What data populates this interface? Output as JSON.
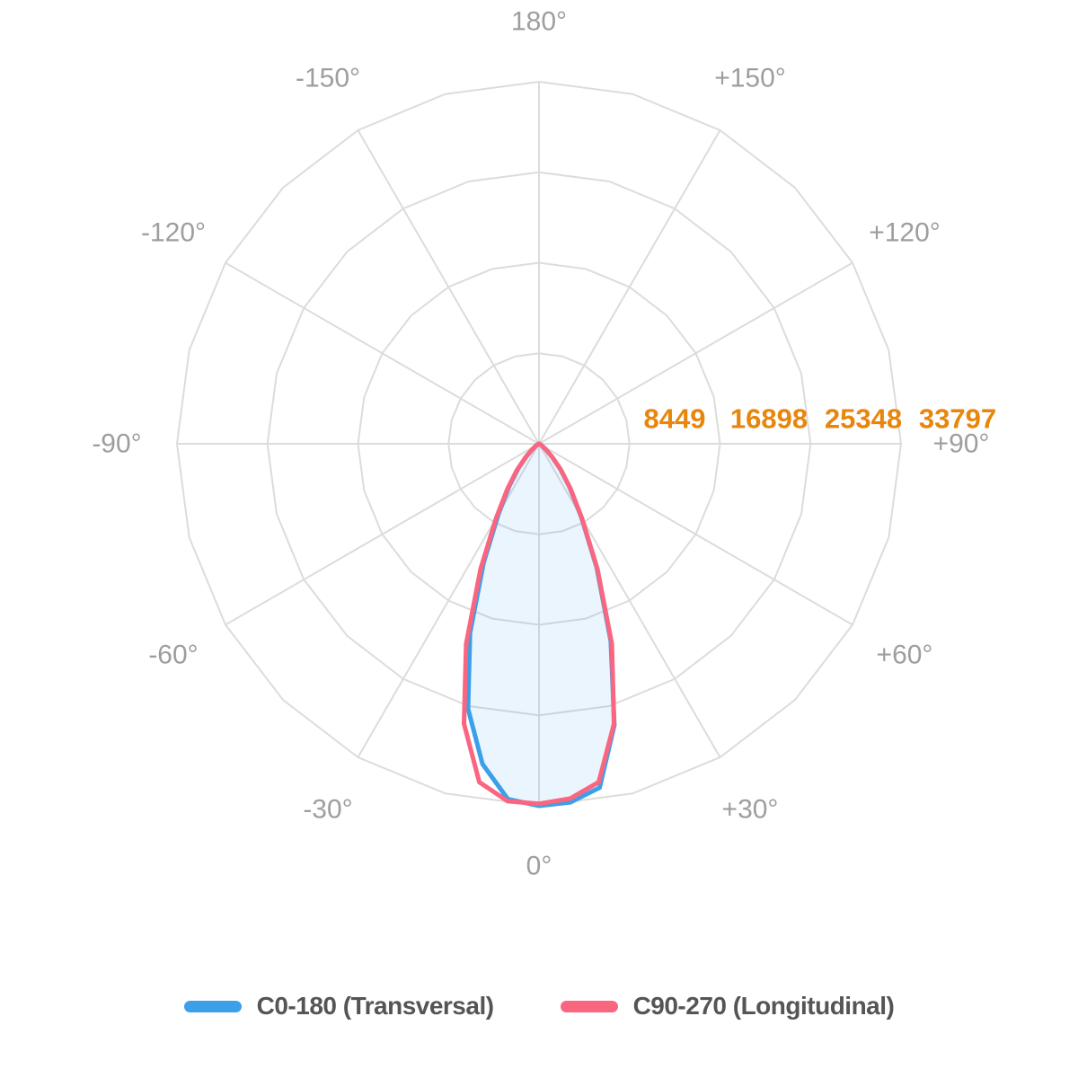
{
  "page": {
    "background": "#ffffff"
  },
  "chart_data": {
    "type": "line",
    "polar": true,
    "title": "",
    "description": "Photometric polar luminous intensity distribution diagram, 0 degrees at bottom",
    "grid": {
      "color": "#dcdcdc",
      "ring_count": 4,
      "spoke_step_deg": 30,
      "ring_vertex_step_deg": 15,
      "grid_on": true
    },
    "angle_axis": {
      "tick_step_deg": 30,
      "label_color": "#9e9e9e",
      "labels": [
        {
          "deg": 0,
          "label": "0°"
        },
        {
          "deg": 30,
          "label": "+30°"
        },
        {
          "deg": 60,
          "label": "+60°"
        },
        {
          "deg": 90,
          "label": "+90°"
        },
        {
          "deg": 120,
          "label": "+120°"
        },
        {
          "deg": 150,
          "label": "+150°"
        },
        {
          "deg": 180,
          "label": "180°"
        },
        {
          "deg": -150,
          "label": "-150°"
        },
        {
          "deg": -120,
          "label": "-120°"
        },
        {
          "deg": -90,
          "label": "-90°"
        },
        {
          "deg": -60,
          "label": "-60°"
        },
        {
          "deg": -30,
          "label": "-30°"
        }
      ]
    },
    "radial_axis": {
      "ticks": [
        8449,
        16898,
        25348,
        33797
      ],
      "max": 33797,
      "label_color": "#e8860c"
    },
    "gamma_deg": [
      -90,
      -85,
      -80,
      -75,
      -70,
      -65,
      -60,
      -55,
      -50,
      -45,
      -40,
      -35,
      -30,
      -25,
      -20,
      -15,
      -10,
      -5,
      0,
      5,
      10,
      15,
      20,
      25,
      30,
      35,
      40,
      45,
      50,
      55,
      60,
      65,
      70,
      75,
      80,
      85,
      90
    ],
    "series": [
      {
        "name": "C0-180 (Transversal)",
        "color": "#3ba0e8",
        "fill": "rgba(59,160,232,0.10)",
        "values": [
          0,
          6,
          14,
          29,
          53,
          97,
          194,
          388,
          795,
          1650,
          3010,
          4850,
          7570,
          12220,
          18820,
          25610,
          30360,
          33300,
          33797,
          33600,
          32600,
          27200,
          19600,
          12730,
          7880,
          5050,
          3130,
          1720,
          830,
          404,
          202,
          101,
          56,
          30,
          15,
          6,
          0
        ]
      },
      {
        "name": "C90-270 (Longitudinal)",
        "color": "#fa6580",
        "fill": "none",
        "values": [
          0,
          7,
          16,
          31,
          57,
          103,
          205,
          410,
          840,
          1740,
          3180,
          5130,
          8000,
          12920,
          19890,
          27060,
          32080,
          33500,
          33600,
          33250,
          32080,
          27060,
          19890,
          12920,
          8000,
          5130,
          3180,
          1740,
          840,
          410,
          205,
          103,
          57,
          31,
          16,
          7,
          0
        ]
      }
    ],
    "legend": {
      "position": "bottom",
      "text_color": "#555555",
      "entries": [
        "C0-180 (Transversal)",
        "C90-270 (Longitudinal)"
      ]
    }
  }
}
